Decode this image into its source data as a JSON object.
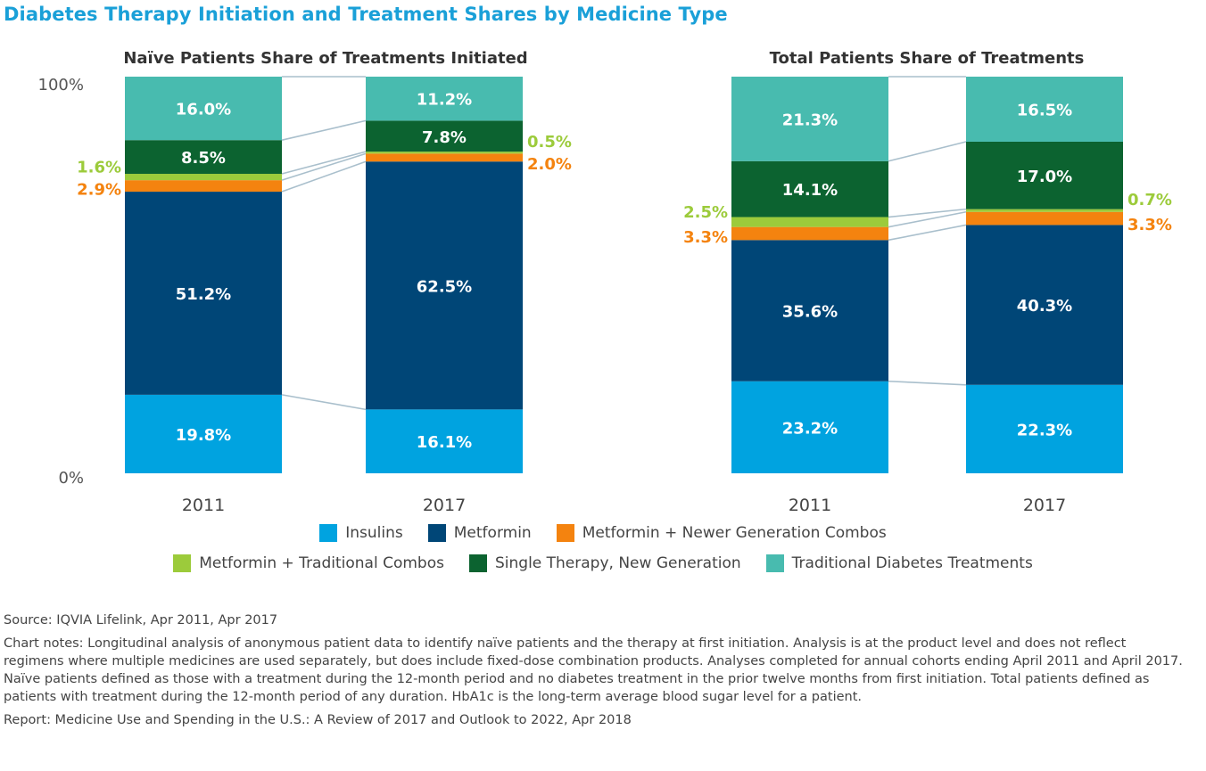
{
  "title": "Diabetes Therapy Initiation and Treatment Shares by Medicine Type",
  "chart_data": {
    "type": "bar",
    "stacked": true,
    "y_axis_labels": [
      "100%",
      "0%"
    ],
    "ylim": [
      0,
      100
    ],
    "categories_order": [
      "Insulins",
      "Metformin",
      "Metformin + Newer Generation Combos",
      "Metformin + Traditional Combos",
      "Single Therapy, New Generation",
      "Traditional Diabetes Treatments"
    ],
    "colors": {
      "Insulins": "#00a3e0",
      "Metformin": "#004677",
      "Metformin + Newer Generation Combos": "#f4830f",
      "Metformin + Traditional Combos": "#9ccb3b",
      "Single Therapy, New Generation": "#0c6330",
      "Traditional Diabetes Treatments": "#48bbaf"
    },
    "panels": [
      {
        "title": "Naïve Patients Share of Treatments Initiated",
        "bars": [
          {
            "x": "2011",
            "values": [
              19.8,
              51.2,
              2.9,
              1.6,
              8.5,
              16.0
            ],
            "labels": [
              "19.8%",
              "51.2%",
              "2.9%",
              "1.6%",
              "8.5%",
              "16.0%"
            ]
          },
          {
            "x": "2017",
            "values": [
              16.1,
              62.5,
              2.0,
              0.5,
              7.8,
              11.2
            ],
            "labels": [
              "16.1%",
              "62.5%",
              "2.0%",
              "0.5%",
              "7.8%",
              "11.2%"
            ]
          }
        ]
      },
      {
        "title": "Total Patients Share of Treatments",
        "bars": [
          {
            "x": "2011",
            "values": [
              23.2,
              35.6,
              3.3,
              2.5,
              14.1,
              21.3
            ],
            "labels": [
              "23.2%",
              "35.6%",
              "3.3%",
              "2.5%",
              "14.1%",
              "21.3%"
            ]
          },
          {
            "x": "2017",
            "values": [
              22.3,
              40.3,
              3.3,
              0.7,
              17.0,
              16.5
            ],
            "labels": [
              "22.3%",
              "40.3%",
              "3.3%",
              "0.7%",
              "17.0%",
              "16.5%"
            ]
          }
        ]
      }
    ],
    "legend": [
      "Insulins",
      "Metformin",
      "Metformin + Newer Generation Combos",
      "Metformin + Traditional Combos",
      "Single Therapy, New Generation",
      "Traditional Diabetes Treatments"
    ]
  },
  "notes": {
    "source": "Source: IQVIA Lifelink, Apr 2011, Apr 2017",
    "chart_notes": "Chart notes: Longitudinal analysis of anonymous patient data to identify naïve patients and the therapy at first initiation. Analysis is at the product level and does not reflect regimens where multiple medicines are used separately, but does include fixed-dose combination products. Analyses completed for annual cohorts ending April 2011 and April 2017. Naïve patients defined as those with a treatment during the 12-month period and no diabetes treatment in the prior twelve months from first initiation. Total patients defined as patients with treatment during the 12-month period of any duration. HbA1c is the long-term average blood sugar level for a patient.",
    "report": "Report: Medicine Use and Spending in the U.S.: A Review of 2017 and Outlook to 2022, Apr 2018"
  }
}
